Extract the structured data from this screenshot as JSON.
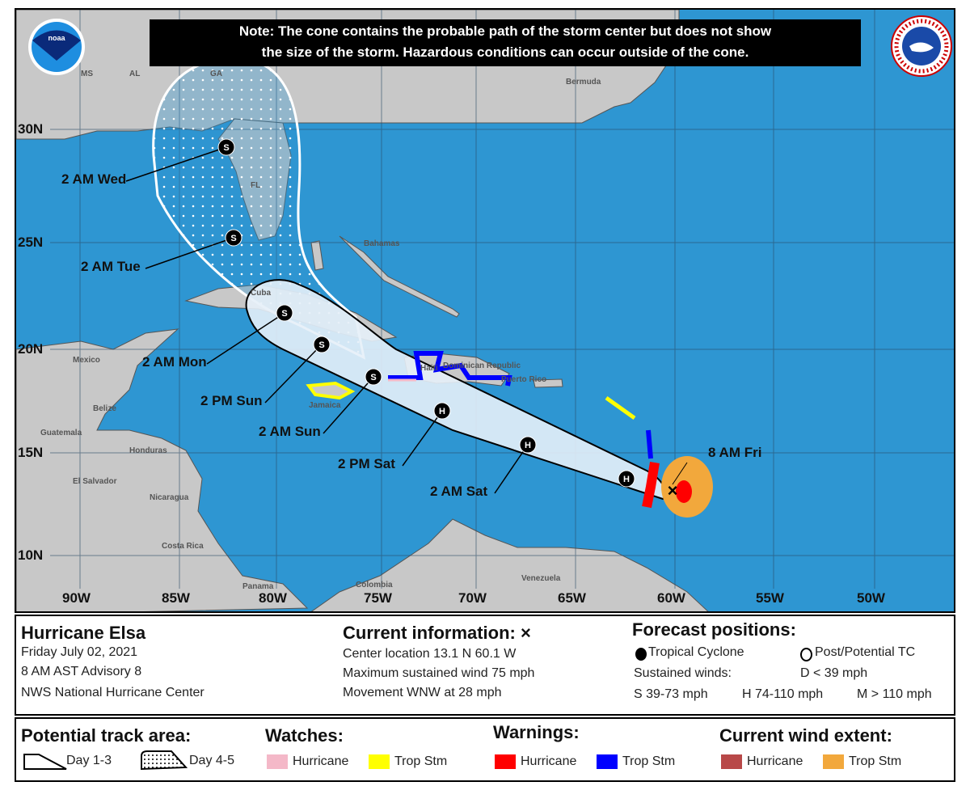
{
  "note": {
    "line1": "Note: The cone contains the probable path of the storm center but does not show",
    "line2": "the size of the storm. Hazardous conditions can occur outside of the cone."
  },
  "logos": {
    "noaa": "noaa",
    "nws": "NATIONAL WEATHER SERVICE"
  },
  "axes": {
    "lon": [
      "90W",
      "85W",
      "80W",
      "75W",
      "70W",
      "65W",
      "60W",
      "55W",
      "50W"
    ],
    "lat": [
      "30N",
      "25N",
      "20N",
      "15N",
      "10N"
    ]
  },
  "places": [
    "MS",
    "AL",
    "GA",
    "FL",
    "Bermuda",
    "Bahamas",
    "Cuba",
    "Mexico",
    "Belize",
    "Guatemala",
    "Honduras",
    "El Salvador",
    "Nicaragua",
    "Costa Rica",
    "Panama",
    "Colombia",
    "Venezuela",
    "Jamaica",
    "Haiti",
    "Dominican Republic",
    "Puerto Rico"
  ],
  "track": [
    {
      "label": "8 AM Fri",
      "symbol": "x"
    },
    {
      "label": "",
      "symbol": "H"
    },
    {
      "label": "2 AM Sat",
      "symbol": "H"
    },
    {
      "label": "2 PM Sat",
      "symbol": "H"
    },
    {
      "label": "2 AM Sun",
      "symbol": "S"
    },
    {
      "label": "2 PM Sun",
      "symbol": "S"
    },
    {
      "label": "2 AM Mon",
      "symbol": "S"
    },
    {
      "label": "2 AM Tue",
      "symbol": "S"
    },
    {
      "label": "2 AM Wed",
      "symbol": "S"
    }
  ],
  "info": {
    "storm": "Hurricane Elsa",
    "date": "Friday July 02, 2021",
    "advisory": "8 AM AST Advisory 8",
    "center": "NWS National Hurricane Center",
    "current_title": "Current information: ×",
    "location": "Center location 13.1 N 60.1 W",
    "wind": "Maximum sustained wind 75 mph",
    "movement": "Movement WNW at 28 mph",
    "forecast_title": "Forecast positions:",
    "tc": "Tropical Cyclone",
    "ptc": "Post/Potential TC",
    "sustained": "Sustained winds:",
    "d": "D < 39 mph",
    "s": "S 39-73 mph",
    "hcat": "H 74-110 mph",
    "m": "M > 110 mph"
  },
  "legend": {
    "track_title": "Potential track area:",
    "day13": "Day 1-3",
    "day45": "Day 4-5",
    "watches_title": "Watches:",
    "warnings_title": "Warnings:",
    "wind_title": "Current wind extent:",
    "hurricane": "Hurricane",
    "tropstm": "Trop Stm"
  },
  "colors": {
    "ocean": "#2e96d2",
    "land": "#c8c8c8",
    "watch_hurricane": "#f4b8c8",
    "watch_ts": "#ffff00",
    "warn_hurricane": "#ff0000",
    "warn_ts": "#0000ff",
    "wind_hurricane": "#b84848",
    "wind_ts": "#f2a83c"
  }
}
